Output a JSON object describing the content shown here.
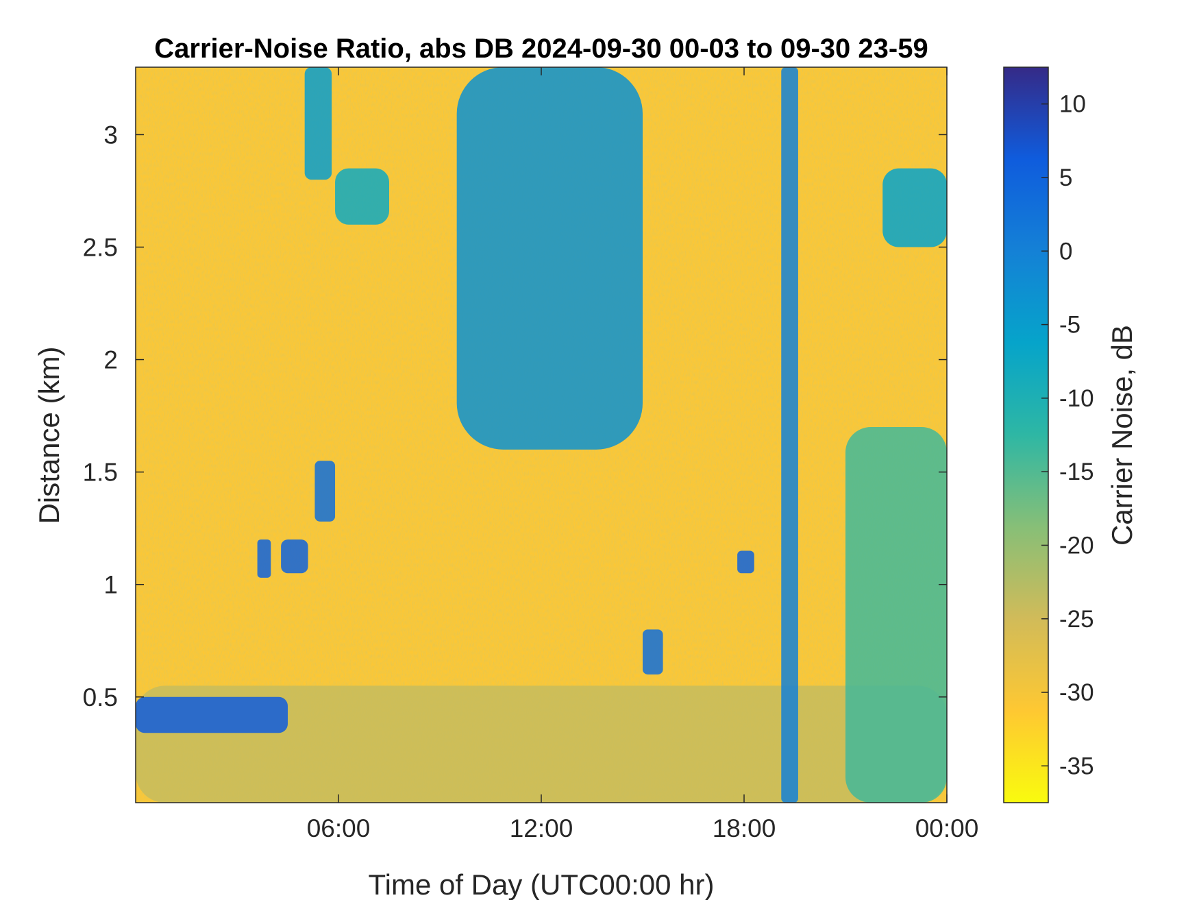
{
  "chart_data": {
    "type": "heatmap",
    "title": "Carrier-Noise Ratio, abs DB 2024-09-30 00-03 to 09-30 23-59",
    "xlabel": "Time of Day (UTC00:00 hr)",
    "ylabel": "Distance (km)",
    "colorbar_label": "Carrier Noise, dB",
    "xlim": [
      0,
      24
    ],
    "ylim": [
      0.03,
      3.3
    ],
    "clim": [
      -37.5,
      12.5
    ],
    "x_ticks": [
      {
        "value": 6,
        "label": "06:00"
      },
      {
        "value": 12,
        "label": "12:00"
      },
      {
        "value": 18,
        "label": "18:00"
      },
      {
        "value": 24,
        "label": "00:00"
      }
    ],
    "y_ticks": [
      {
        "value": 0.5,
        "label": "0.5"
      },
      {
        "value": 1,
        "label": "1"
      },
      {
        "value": 1.5,
        "label": "1.5"
      },
      {
        "value": 2,
        "label": "2"
      },
      {
        "value": 2.5,
        "label": "2.5"
      },
      {
        "value": 3,
        "label": "3"
      }
    ],
    "colorbar_ticks": [
      {
        "value": 10,
        "label": "10"
      },
      {
        "value": 5,
        "label": "5"
      },
      {
        "value": 0,
        "label": "0"
      },
      {
        "value": -5,
        "label": "-5"
      },
      {
        "value": -10,
        "label": "-10"
      },
      {
        "value": -15,
        "label": "-15"
      },
      {
        "value": -20,
        "label": "-20"
      },
      {
        "value": -25,
        "label": "-25"
      },
      {
        "value": -30,
        "label": "-30"
      },
      {
        "value": -35,
        "label": "-35"
      }
    ],
    "colormap": [
      "#352a87",
      "#0f5cdd",
      "#1481d6",
      "#06a4ca",
      "#2eb7a4",
      "#87bf77",
      "#d1bb59",
      "#fec832",
      "#f9fb0e"
    ],
    "background_value_db": -31,
    "features": [
      {
        "name": "near-range boundary layer",
        "t": [
          0,
          24
        ],
        "d": [
          0.03,
          0.55
        ],
        "db": -24
      },
      {
        "name": "strong return band",
        "t": [
          0,
          4.5
        ],
        "d": [
          0.34,
          0.5
        ],
        "db": 6
      },
      {
        "name": "morning echo 1",
        "t": [
          3.6,
          4.0
        ],
        "d": [
          1.03,
          1.2
        ],
        "db": 5
      },
      {
        "name": "morning echo 2",
        "t": [
          4.3,
          5.1
        ],
        "d": [
          1.05,
          1.2
        ],
        "db": 5
      },
      {
        "name": "morning echo 3",
        "t": [
          5.3,
          5.9
        ],
        "d": [
          1.28,
          1.55
        ],
        "db": 3
      },
      {
        "name": "high echo 06h",
        "t": [
          5.9,
          7.5
        ],
        "d": [
          2.6,
          2.85
        ],
        "db": -8
      },
      {
        "name": "high echo top 05h",
        "t": [
          5.0,
          5.8
        ],
        "d": [
          2.8,
          3.3
        ],
        "db": -5
      },
      {
        "name": "cloud mass midday",
        "t": [
          9.5,
          15.0
        ],
        "d": [
          1.6,
          3.3
        ],
        "db": -3
      },
      {
        "name": "afternoon echo",
        "t": [
          15.0,
          15.6
        ],
        "d": [
          0.6,
          0.8
        ],
        "db": 3
      },
      {
        "name": "evening echo",
        "t": [
          17.8,
          18.3
        ],
        "d": [
          1.05,
          1.15
        ],
        "db": 5
      },
      {
        "name": "instrument dropout column",
        "t": [
          19.1,
          19.6
        ],
        "d": [
          0.03,
          3.3
        ],
        "db": 0
      },
      {
        "name": "late high echo",
        "t": [
          22.1,
          24.0
        ],
        "d": [
          2.5,
          2.85
        ],
        "db": -6
      },
      {
        "name": "late descending streaks",
        "t": [
          21.0,
          24.0
        ],
        "d": [
          0.03,
          1.7
        ],
        "db": -14
      }
    ]
  }
}
